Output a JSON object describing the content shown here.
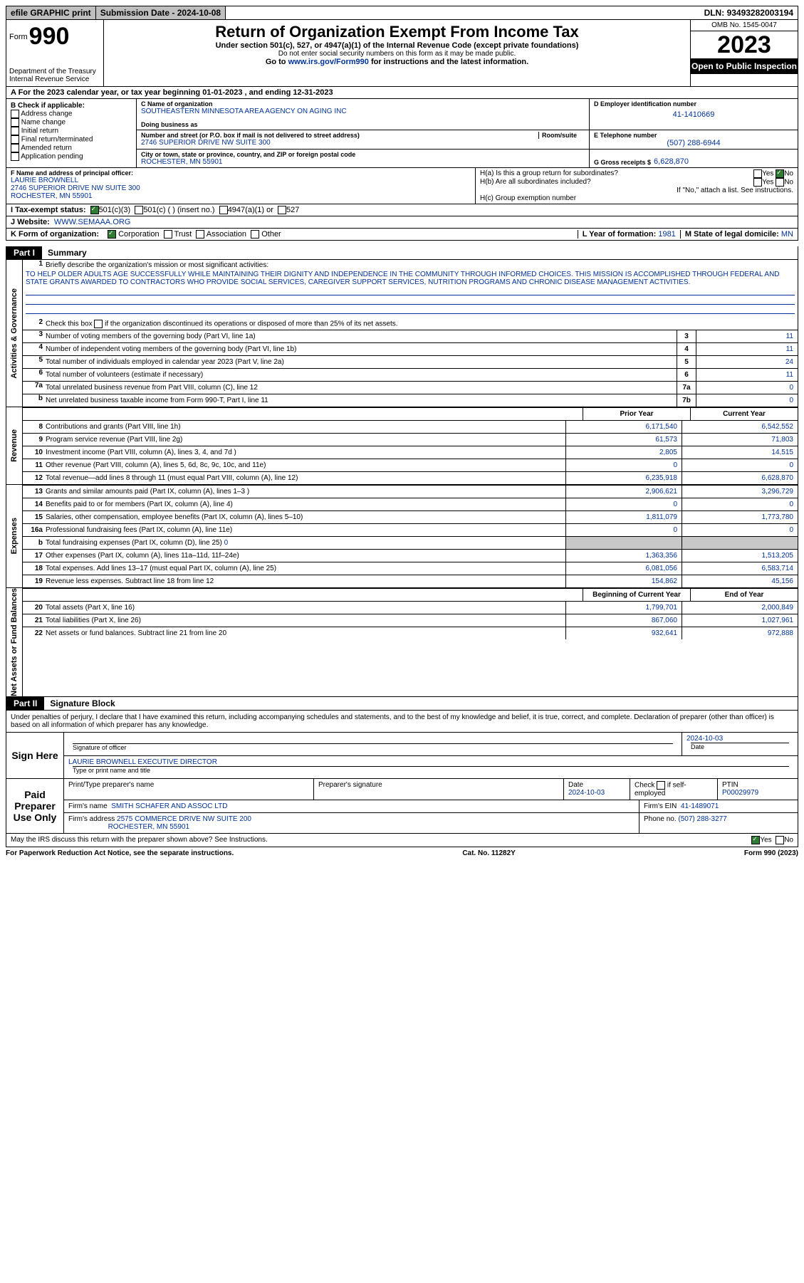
{
  "topbar": {
    "efile": "efile GRAPHIC print",
    "submission_label": "Submission Date - ",
    "submission_date": "2024-10-08",
    "dln_label": "DLN: ",
    "dln": "93493282003194"
  },
  "header": {
    "form_prefix": "Form",
    "form_number": "990",
    "dept": "Department of the Treasury",
    "irs": "Internal Revenue Service",
    "title": "Return of Organization Exempt From Income Tax",
    "subtitle": "Under section 501(c), 527, or 4947(a)(1) of the Internal Revenue Code (except private foundations)",
    "sub2": "Do not enter social security numbers on this form as it may be made public.",
    "sub3a": "Go to ",
    "sub3_link": "www.irs.gov/Form990",
    "sub3b": " for instructions and the latest information.",
    "omb": "OMB No. 1545-0047",
    "year": "2023",
    "inspection": "Open to Public Inspection"
  },
  "row_a": "A  For the 2023 calendar year, or tax year beginning 01-01-2023    , and ending 12-31-2023",
  "col_b": {
    "label": "B Check if applicable:",
    "items": [
      "Address change",
      "Name change",
      "Initial return",
      "Final return/terminated",
      "Amended return",
      "Application pending"
    ]
  },
  "col_c": {
    "name_lbl": "C Name of organization",
    "name": "SOUTHEASTERN MINNESOTA AREA AGENCY ON AGING INC",
    "dba_lbl": "Doing business as",
    "addr_lbl": "Number and street (or P.O. box if mail is not delivered to street address)",
    "room_lbl": "Room/suite",
    "addr": "2746 SUPERIOR DRIVE NW SUITE 300",
    "city_lbl": "City or town, state or province, country, and ZIP or foreign postal code",
    "city": "ROCHESTER, MN  55901"
  },
  "col_d": {
    "ein_lbl": "D Employer identification number",
    "ein": "41-1410669",
    "tel_lbl": "E Telephone number",
    "tel": "(507) 288-6944",
    "gross_lbl": "G Gross receipts $",
    "gross": "6,628,870"
  },
  "principal": {
    "lbl": "F Name and address of principal officer:",
    "name": "LAURIE BROWNELL",
    "addr1": "2746 SUPERIOR DRIVE NW SUITE 300",
    "addr2": "ROCHESTER, MN  55901"
  },
  "h_section": {
    "ha": "H(a)  Is this a group return for subordinates?",
    "hb": "H(b)  Are all subordinates included?",
    "hb_note": "If \"No,\" attach a list. See instructions.",
    "hc": "H(c)  Group exemption number ",
    "yes": "Yes",
    "no": "No"
  },
  "tax_status": {
    "lbl": "I   Tax-exempt status:",
    "c3": "501(c)(3)",
    "cins": "501(c) (  ) (insert no.)",
    "c4947": "4947(a)(1) or",
    "c527": "527"
  },
  "website": {
    "lbl": "J   Website:",
    "url": "WWW.SEMAAA.ORG"
  },
  "k_row": {
    "lbl": "K Form of organization:",
    "opts": [
      "Corporation",
      "Trust",
      "Association",
      "Other"
    ]
  },
  "l_row": {
    "lbl": "L Year of formation: ",
    "val": "1981"
  },
  "m_row": {
    "lbl": "M State of legal domicile: ",
    "val": "MN"
  },
  "part1": {
    "num": "Part I",
    "title": "Summary"
  },
  "summary": {
    "q1_lbl": "Briefly describe the organization's mission or most significant activities:",
    "q1_text": "TO HELP OLDER ADULTS AGE SUCCESSFULLY WHILE MAINTAINING THEIR DIGNITY AND INDEPENDENCE IN THE COMMUNITY THROUGH INFORMED CHOICES. THIS MISSION IS ACCOMPLISHED THROUGH FEDERAL AND STATE GRANTS AWARDED TO CONTRACTORS WHO PROVIDE SOCIAL SERVICES, CAREGIVER SUPPORT SERVICES, NUTRITION PROGRAMS AND CHRONIC DISEASE MANAGEMENT ACTIVITIES.",
    "q2": "Check this box        if the organization discontinued its operations or disposed of more than 25% of its net assets.",
    "rows_simple": [
      {
        "n": "3",
        "d": "Number of voting members of the governing body (Part VI, line 1a)",
        "box": "3",
        "v": "11"
      },
      {
        "n": "4",
        "d": "Number of independent voting members of the governing body (Part VI, line 1b)",
        "box": "4",
        "v": "11"
      },
      {
        "n": "5",
        "d": "Total number of individuals employed in calendar year 2023 (Part V, line 2a)",
        "box": "5",
        "v": "24"
      },
      {
        "n": "6",
        "d": "Total number of volunteers (estimate if necessary)",
        "box": "6",
        "v": "11"
      },
      {
        "n": "7a",
        "d": "Total unrelated business revenue from Part VIII, column (C), line 12",
        "box": "7a",
        "v": "0"
      },
      {
        "n": "b",
        "d": "Net unrelated business taxable income from Form 990-T, Part I, line 11",
        "box": "7b",
        "v": "0"
      }
    ],
    "rev_hdr": {
      "prior": "Prior Year",
      "curr": "Current Year"
    },
    "revenue_rows": [
      {
        "n": "8",
        "d": "Contributions and grants (Part VIII, line 1h)",
        "p": "6,171,540",
        "c": "6,542,552"
      },
      {
        "n": "9",
        "d": "Program service revenue (Part VIII, line 2g)",
        "p": "61,573",
        "c": "71,803"
      },
      {
        "n": "10",
        "d": "Investment income (Part VIII, column (A), lines 3, 4, and 7d )",
        "p": "2,805",
        "c": "14,515"
      },
      {
        "n": "11",
        "d": "Other revenue (Part VIII, column (A), lines 5, 6d, 8c, 9c, 10c, and 11e)",
        "p": "0",
        "c": "0"
      },
      {
        "n": "12",
        "d": "Total revenue—add lines 8 through 11 (must equal Part VIII, column (A), line 12)",
        "p": "6,235,918",
        "c": "6,628,870"
      }
    ],
    "expense_rows": [
      {
        "n": "13",
        "d": "Grants and similar amounts paid (Part IX, column (A), lines 1–3 )",
        "p": "2,906,621",
        "c": "3,296,729"
      },
      {
        "n": "14",
        "d": "Benefits paid to or for members (Part IX, column (A), line 4)",
        "p": "0",
        "c": "0"
      },
      {
        "n": "15",
        "d": "Salaries, other compensation, employee benefits (Part IX, column (A), lines 5–10)",
        "p": "1,811,079",
        "c": "1,773,780"
      },
      {
        "n": "16a",
        "d": "Professional fundraising fees (Part IX, column (A), line 11e)",
        "p": "0",
        "c": "0"
      }
    ],
    "row16b": {
      "n": "b",
      "d": "Total fundraising expenses (Part IX, column (D), line 25) ",
      "v": "0"
    },
    "expense_rows2": [
      {
        "n": "17",
        "d": "Other expenses (Part IX, column (A), lines 11a–11d, 11f–24e)",
        "p": "1,363,356",
        "c": "1,513,205"
      },
      {
        "n": "18",
        "d": "Total expenses. Add lines 13–17 (must equal Part IX, column (A), line 25)",
        "p": "6,081,056",
        "c": "6,583,714"
      },
      {
        "n": "19",
        "d": "Revenue less expenses. Subtract line 18 from line 12",
        "p": "154,862",
        "c": "45,156"
      }
    ],
    "net_hdr": {
      "prior": "Beginning of Current Year",
      "curr": "End of Year"
    },
    "net_rows": [
      {
        "n": "20",
        "d": "Total assets (Part X, line 16)",
        "p": "1,799,701",
        "c": "2,000,849"
      },
      {
        "n": "21",
        "d": "Total liabilities (Part X, line 26)",
        "p": "867,060",
        "c": "1,027,961"
      },
      {
        "n": "22",
        "d": "Net assets or fund balances. Subtract line 21 from line 20",
        "p": "932,641",
        "c": "972,888"
      }
    ],
    "side_labels": {
      "gov": "Activities & Governance",
      "rev": "Revenue",
      "exp": "Expenses",
      "net": "Net Assets or Fund Balances"
    }
  },
  "part2": {
    "num": "Part II",
    "title": "Signature Block",
    "text": "Under penalties of perjury, I declare that I have examined this return, including accompanying schedules and statements, and to the best of my knowledge and belief, it is true, correct, and complete. Declaration of preparer (other than officer) is based on all information of which preparer has any knowledge."
  },
  "sign": {
    "left": "Sign Here",
    "sig_lbl": "Signature of officer",
    "date_lbl": "Date",
    "date_val": "2024-10-03",
    "name": "LAURIE BROWNELL  EXECUTIVE DIRECTOR",
    "name_lbl": "Type or print name and title"
  },
  "preparer": {
    "left": "Paid Preparer Use Only",
    "h1": "Print/Type preparer's name",
    "h2": "Preparer's signature",
    "h3": "Date",
    "date_val": "2024-10-03",
    "h4": "Check         if self-employed",
    "h5_lbl": "PTIN",
    "h5_val": "P00029979",
    "firm_name_lbl": "Firm's name",
    "firm_name": "SMITH SCHAFER AND ASSOC LTD",
    "firm_ein_lbl": "Firm's EIN",
    "firm_ein": "41-1489071",
    "firm_addr_lbl": "Firm's address",
    "firm_addr1": "2575 COMMERCE DRIVE NW SUITE 200",
    "firm_addr2": "ROCHESTER, MN  55901",
    "phone_lbl": "Phone no.",
    "phone": "(507) 288-3277"
  },
  "foot": {
    "q": "May the IRS discuss this return with the preparer shown above? See Instructions.",
    "yes": "Yes",
    "no": "No"
  },
  "bottom": {
    "l": "For Paperwork Reduction Act Notice, see the separate instructions.",
    "c": "Cat. No. 11282Y",
    "r": "Form 990 (2023)"
  }
}
